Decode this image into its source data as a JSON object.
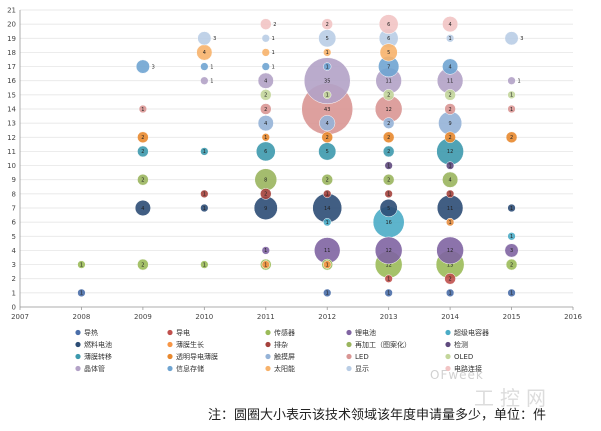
{
  "chart_data": {
    "type": "scatter",
    "subtype": "bubble",
    "xlim": [
      2007,
      2016
    ],
    "ylim": [
      0,
      21
    ],
    "x_ticks": [
      2007,
      2008,
      2009,
      2010,
      2011,
      2012,
      2013,
      2014,
      2015,
      2016
    ],
    "y_ticks": [
      0,
      1,
      2,
      3,
      4,
      5,
      6,
      7,
      8,
      9,
      10,
      11,
      12,
      13,
      14,
      15,
      16,
      17,
      18,
      19,
      20,
      21
    ],
    "grid": true,
    "legend_position": "bottom",
    "series": [
      {
        "name": "导热",
        "color": "#4a6ea9",
        "points": [
          [
            2008,
            1,
            1
          ],
          [
            2012,
            1,
            1
          ],
          [
            2013,
            1,
            1
          ],
          [
            2014,
            1,
            1
          ],
          [
            2015,
            1,
            1
          ]
        ]
      },
      {
        "name": "导电",
        "color": "#c0504d",
        "points": [
          [
            2013,
            2,
            1
          ],
          [
            2014,
            2,
            2
          ]
        ]
      },
      {
        "name": "传感器",
        "color": "#9bbb59",
        "points": [
          [
            2008,
            3,
            1
          ],
          [
            2009,
            3,
            2
          ],
          [
            2010,
            3,
            1
          ],
          [
            2011,
            3,
            2
          ],
          [
            2012,
            3,
            2
          ],
          [
            2013,
            3,
            12
          ],
          [
            2014,
            3,
            13
          ],
          [
            2015,
            3,
            2
          ]
        ]
      },
      {
        "name": "锂电池",
        "color": "#8064a2",
        "points": [
          [
            2011,
            4,
            1
          ],
          [
            2012,
            4,
            11
          ],
          [
            2013,
            4,
            12
          ],
          [
            2014,
            4,
            12
          ],
          [
            2015,
            4,
            3
          ]
        ]
      },
      {
        "name": "超级电容器",
        "color": "#4bacc6",
        "points": [
          [
            2012,
            6,
            1
          ],
          [
            2013,
            6,
            16
          ],
          [
            2014,
            6,
            1
          ],
          [
            2015,
            5,
            1
          ]
        ]
      },
      {
        "name": "燃料电池",
        "color": "#2c4d75",
        "points": [
          [
            2009,
            7,
            4
          ],
          [
            2010,
            7,
            1
          ],
          [
            2011,
            7,
            9
          ],
          [
            2012,
            7,
            14
          ],
          [
            2013,
            7,
            5
          ],
          [
            2014,
            7,
            11
          ],
          [
            2015,
            7,
            1
          ]
        ]
      },
      {
        "name": "薄膜生长",
        "color": "#f79646",
        "points": [
          [
            2011,
            3,
            1
          ],
          [
            2012,
            3,
            1
          ],
          [
            2014,
            6,
            1
          ]
        ]
      },
      {
        "name": "排杂",
        "color": "#a5423d",
        "points": [
          [
            2010,
            8,
            1
          ],
          [
            2011,
            8,
            2
          ],
          [
            2012,
            8,
            1
          ],
          [
            2013,
            8,
            1
          ],
          [
            2014,
            8,
            1
          ]
        ]
      },
      {
        "name": "再加工（图案化）",
        "color": "#9ab55e",
        "points": [
          [
            2009,
            9,
            2
          ],
          [
            2011,
            9,
            8
          ],
          [
            2012,
            9,
            2
          ],
          [
            2013,
            9,
            2
          ],
          [
            2014,
            9,
            4
          ]
        ]
      },
      {
        "name": "检测",
        "color": "#5f4a7e",
        "points": [
          [
            2013,
            10,
            1
          ],
          [
            2014,
            10,
            1
          ]
        ]
      },
      {
        "name": "薄膜转移",
        "color": "#3d99ad",
        "points": [
          [
            2009,
            11,
            2
          ],
          [
            2010,
            11,
            1
          ],
          [
            2011,
            11,
            6
          ],
          [
            2012,
            11,
            5
          ],
          [
            2013,
            11,
            2
          ],
          [
            2014,
            11,
            12
          ]
        ]
      },
      {
        "name": "透明导电薄膜",
        "color": "#e8882e",
        "points": [
          [
            2009,
            12,
            2
          ],
          [
            2011,
            12,
            1
          ],
          [
            2012,
            12,
            2
          ],
          [
            2013,
            12,
            2
          ],
          [
            2014,
            12,
            2
          ],
          [
            2015,
            12,
            2
          ]
        ]
      },
      {
        "name": "触摸屏",
        "color": "#95b3d7",
        "points": [
          [
            2011,
            13,
            4
          ],
          [
            2012,
            13,
            4
          ],
          [
            2013,
            13,
            2
          ],
          [
            2014,
            13,
            9
          ]
        ]
      },
      {
        "name": "LED",
        "color": "#d99694",
        "points": [
          [
            2009,
            14,
            1
          ],
          [
            2011,
            14,
            2
          ],
          [
            2012,
            14,
            43
          ],
          [
            2013,
            14,
            12
          ],
          [
            2014,
            14,
            2
          ],
          [
            2015,
            14,
            1
          ]
        ]
      },
      {
        "name": "OLED",
        "color": "#c3d69b",
        "points": [
          [
            2011,
            15,
            2
          ],
          [
            2012,
            15,
            1
          ],
          [
            2013,
            15,
            2
          ],
          [
            2014,
            15,
            2
          ],
          [
            2015,
            15,
            1
          ]
        ]
      },
      {
        "name": "晶体管",
        "color": "#b3a2c7",
        "points": [
          [
            2010,
            16,
            1
          ],
          [
            2011,
            16,
            4
          ],
          [
            2012,
            16,
            35
          ],
          [
            2013,
            16,
            11
          ],
          [
            2014,
            16,
            11
          ],
          [
            2015,
            16,
            1
          ]
        ]
      },
      {
        "name": "信息存储",
        "color": "#6fa4d1",
        "points": [
          [
            2009,
            17,
            3
          ],
          [
            2010,
            17,
            1
          ],
          [
            2011,
            17,
            1
          ],
          [
            2012,
            17,
            1
          ],
          [
            2013,
            17,
            7
          ],
          [
            2014,
            17,
            4
          ]
        ]
      },
      {
        "name": "太阳能",
        "color": "#f7b26b",
        "points": [
          [
            2010,
            18,
            4
          ],
          [
            2011,
            18,
            1
          ],
          [
            2012,
            18,
            1
          ],
          [
            2013,
            18,
            5
          ]
        ]
      },
      {
        "name": "显示",
        "color": "#b9cde5",
        "points": [
          [
            2010,
            19,
            3
          ],
          [
            2011,
            19,
            1
          ],
          [
            2012,
            19,
            5
          ],
          [
            2013,
            19,
            6
          ],
          [
            2014,
            19,
            1
          ],
          [
            2015,
            19,
            3
          ]
        ]
      },
      {
        "name": "电路连接",
        "color": "#f2c4c4",
        "points": [
          [
            2011,
            20,
            2
          ],
          [
            2012,
            20,
            2
          ],
          [
            2013,
            20,
            6
          ],
          [
            2014,
            20,
            4
          ]
        ]
      }
    ]
  },
  "footnote": "注：圆圈大小表示该技术领域该年度申请量多少，单位：件",
  "watermark": {
    "line1": "OFweek",
    "line2": "工控网"
  }
}
